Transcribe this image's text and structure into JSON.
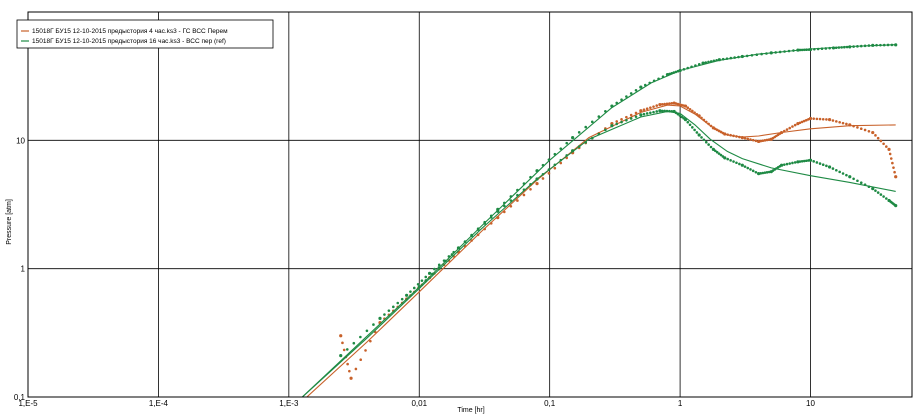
{
  "chart_data": {
    "type": "scatter",
    "title": "",
    "xlabel": "Time [hr]",
    "ylabel": "Pressure [atm]",
    "x_scale": "log",
    "y_scale": "log",
    "xlim": [
      1e-05,
      60
    ],
    "ylim": [
      0.1,
      100
    ],
    "grid": true,
    "legend_position": "top-left",
    "x_ticks": [
      {
        "value": 1e-05,
        "label": "1,E-5"
      },
      {
        "value": 0.0001,
        "label": "1,E-4"
      },
      {
        "value": 0.001,
        "label": "1,E-3"
      },
      {
        "value": 0.01,
        "label": "0,01"
      },
      {
        "value": 0.1,
        "label": "0,1"
      },
      {
        "value": 1,
        "label": "1"
      },
      {
        "value": 10,
        "label": "10"
      }
    ],
    "y_ticks": [
      {
        "value": 0.1,
        "label": "0,1"
      },
      {
        "value": 1,
        "label": "1"
      },
      {
        "value": 10,
        "label": "10"
      }
    ],
    "legend": [
      {
        "label": "15018Г БУ15 12-10-2015 предыстория 4  час.ks3 - ГС ВСС Перем",
        "color": "#c8612a"
      },
      {
        "label": "15018Г БУ15 12-10-2015 предыстория 16  час.ks3 - ВСС пер (ref)",
        "color": "#1e8a44"
      }
    ],
    "series": [
      {
        "name": "Orange pressure change",
        "color": "#c8612a",
        "kind": "markers",
        "x": [
          0.0025,
          0.003,
          0.005,
          0.008,
          0.012,
          0.02,
          0.04,
          0.08,
          0.15,
          0.3,
          0.5,
          0.7,
          0.9,
          1.1,
          1.4,
          1.8,
          2.2,
          3,
          4,
          5,
          6,
          8,
          10,
          14,
          20,
          30,
          40,
          45
        ],
        "y": [
          0.3,
          0.14,
          0.38,
          0.58,
          0.85,
          1.35,
          2.5,
          4.6,
          8.0,
          13.5,
          17.0,
          19.0,
          19.5,
          18.5,
          15.5,
          12.5,
          11.2,
          10.5,
          9.8,
          10.2,
          11.5,
          13.5,
          14.8,
          14.5,
          13.2,
          11.5,
          8.5,
          5.2
        ]
      },
      {
        "name": "Orange pressure change model",
        "color": "#c8612a",
        "kind": "line",
        "x": [
          0.0013,
          0.004,
          0.01,
          0.03,
          0.08,
          0.2,
          0.5,
          0.8,
          1.0,
          1.3,
          1.7,
          2.3,
          3,
          4,
          6,
          10,
          20,
          45
        ],
        "y": [
          0.095,
          0.27,
          0.66,
          1.95,
          4.9,
          10.5,
          16.5,
          18.8,
          18.5,
          16.0,
          13.0,
          11.0,
          10.6,
          10.8,
          11.5,
          12.3,
          13.0,
          13.2
        ]
      },
      {
        "name": "Green pressure change",
        "color": "#1e8a44",
        "kind": "markers",
        "x": [
          0.0025,
          0.005,
          0.008,
          0.012,
          0.02,
          0.04,
          0.08,
          0.15,
          0.3,
          0.5,
          0.7,
          0.9,
          1.1,
          1.4,
          1.8,
          2.2,
          3,
          4,
          5,
          6,
          8,
          10,
          14,
          20,
          30,
          40,
          45
        ],
        "y": [
          0.21,
          0.41,
          0.62,
          0.92,
          1.45,
          2.8,
          5.0,
          8.3,
          13.0,
          15.8,
          17.0,
          16.8,
          14.5,
          11.0,
          8.5,
          7.3,
          6.4,
          5.5,
          5.7,
          6.4,
          6.8,
          7.0,
          6.2,
          5.2,
          4.2,
          3.4,
          3.1
        ]
      },
      {
        "name": "Green pressure change model",
        "color": "#1e8a44",
        "kind": "line",
        "x": [
          0.0012,
          0.004,
          0.01,
          0.03,
          0.08,
          0.2,
          0.5,
          0.8,
          1.0,
          1.3,
          1.7,
          2.3,
          3,
          5,
          10,
          20,
          45
        ],
        "y": [
          0.095,
          0.29,
          0.7,
          2.05,
          5.0,
          10.2,
          15.2,
          16.8,
          16.2,
          13.2,
          10.2,
          8.2,
          7.2,
          6.1,
          5.3,
          4.7,
          4.0
        ]
      },
      {
        "name": "Green pressure",
        "color": "#1e8a44",
        "kind": "markers",
        "x": [
          0.01,
          0.02,
          0.04,
          0.08,
          0.15,
          0.3,
          0.5,
          0.8,
          1.0,
          1.5,
          2,
          3,
          5,
          8,
          10,
          15,
          20,
          30,
          45
        ],
        "y": [
          0.72,
          1.45,
          2.9,
          5.8,
          10.5,
          18.5,
          26.0,
          32.5,
          35.0,
          40.0,
          42.5,
          45.0,
          48.0,
          50.5,
          51.0,
          52.5,
          53.5,
          55.0,
          55.5
        ]
      },
      {
        "name": "Green pressure model",
        "color": "#1e8a44",
        "kind": "line",
        "x": [
          0.0012,
          0.004,
          0.01,
          0.03,
          0.1,
          0.3,
          0.6,
          1.0,
          2,
          4,
          10,
          20,
          45
        ],
        "y": [
          0.095,
          0.3,
          0.72,
          2.15,
          7.0,
          18.0,
          28.0,
          35.0,
          42.0,
          47.0,
          51.5,
          53.8,
          55.6
        ]
      }
    ]
  }
}
